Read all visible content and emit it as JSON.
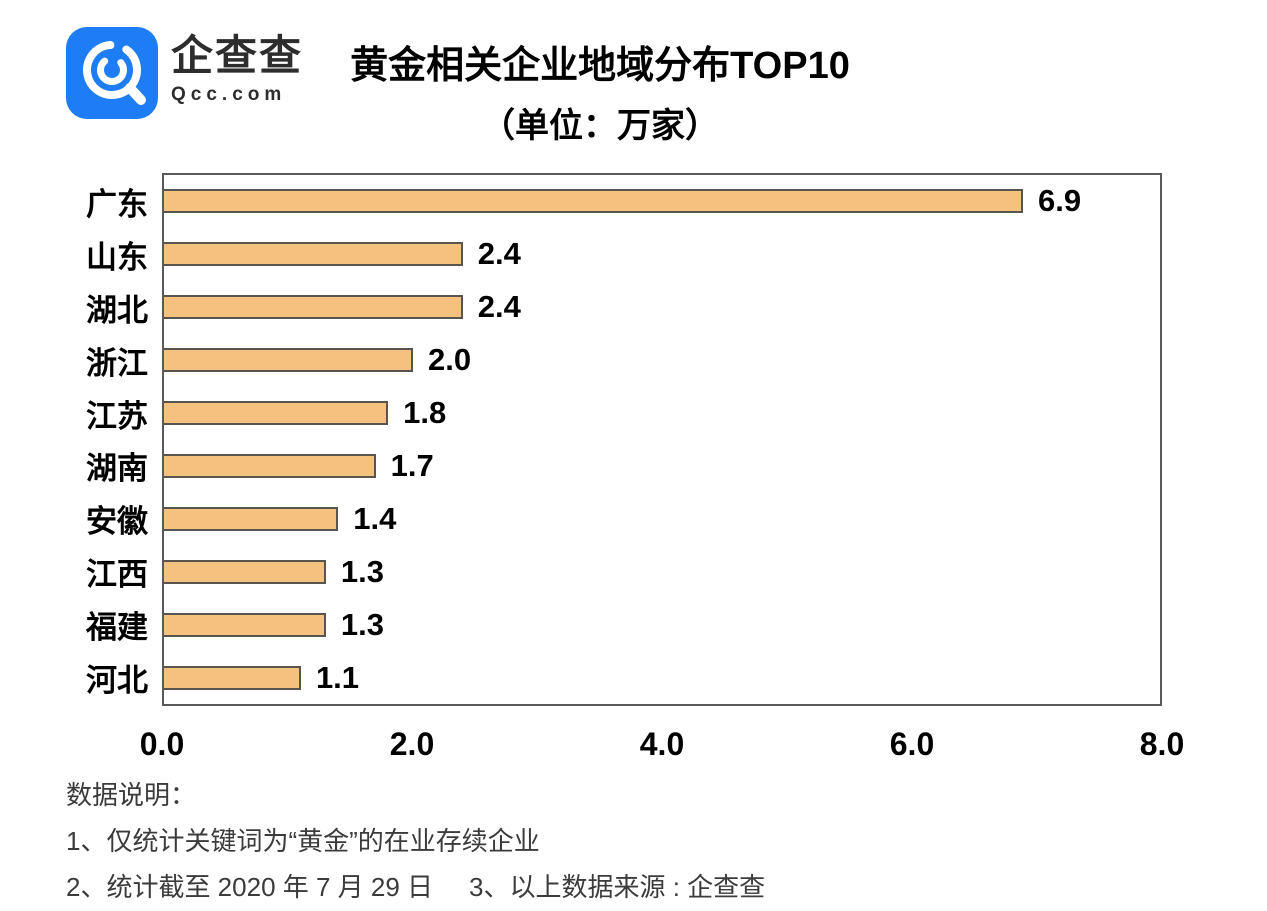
{
  "logo": {
    "name": "企查查",
    "domain": "Qcc.com",
    "icon": "magnifier-icon",
    "brand_color": "#1e7df5"
  },
  "title": {
    "line1": "黄金相关企业地域分布TOP10",
    "line2": "（单位：万家）"
  },
  "chart_data": {
    "type": "bar",
    "orientation": "horizontal",
    "title": "黄金相关企业地域分布TOP10",
    "subtitle": "（单位：万家）",
    "unit": "万家",
    "categories": [
      "广东",
      "山东",
      "湖北",
      "浙江",
      "江苏",
      "湖南",
      "安徽",
      "江西",
      "福建",
      "河北"
    ],
    "values": [
      6.9,
      2.4,
      2.4,
      2.0,
      1.8,
      1.7,
      1.4,
      1.3,
      1.3,
      1.1
    ],
    "value_labels": [
      "6.9",
      "2.4",
      "2.4",
      "2.0",
      "1.8",
      "1.7",
      "1.4",
      "1.3",
      "1.3",
      "1.1"
    ],
    "x_ticks": [
      "0.0",
      "2.0",
      "4.0",
      "6.0",
      "8.0"
    ],
    "xlim": [
      0,
      8
    ],
    "grid": false,
    "legend": false,
    "bar_color": "#f4c17e",
    "bar_border_color": "#59544e",
    "plot_border_color": "#595959"
  },
  "footer": {
    "heading": "数据说明：",
    "note1": "1、仅统计关键词为“黄金”的在业存续企业",
    "note2a": "2、统计截至 2020 年 7 月 29 日",
    "note2b": "3、以上数据来源 : 企查查"
  }
}
